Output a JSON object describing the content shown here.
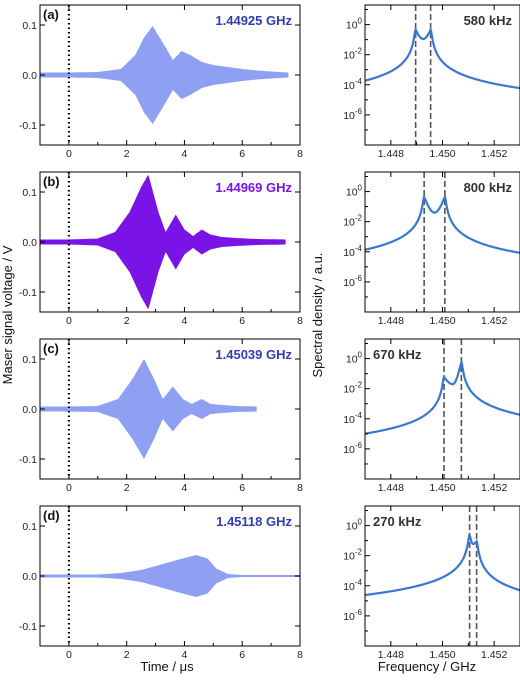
{
  "chart_data": [
    {
      "type": "line",
      "panel": "(a)",
      "annotation": "1.44925 GHz",
      "color": "#8f9ff2",
      "annotation_color": "#2f3fb0",
      "xlim": [
        -1,
        8
      ],
      "ylim": [
        -0.14,
        0.14
      ],
      "xticks": [
        0,
        2,
        4,
        6,
        8
      ],
      "xtick_labels": [
        "0",
        "2",
        "4",
        "6",
        "8"
      ],
      "yticks": [
        -0.1,
        0.0,
        0.1
      ],
      "ytick_labels": [
        "-0.1",
        "0.0",
        "0.1"
      ],
      "trigger_line_x": 0,
      "envelope": {
        "x": [
          -1.0,
          0.0,
          1.0,
          1.8,
          2.3,
          2.6,
          2.9,
          3.3,
          3.6,
          3.9,
          4.2,
          4.6,
          5.0,
          5.5,
          6.0,
          6.5,
          7.0,
          7.6
        ],
        "y": [
          0.005,
          0.005,
          0.006,
          0.012,
          0.04,
          0.075,
          0.098,
          0.06,
          0.03,
          0.048,
          0.04,
          0.026,
          0.02,
          0.016,
          0.012,
          0.009,
          0.007,
          0.005
        ]
      },
      "trace_end_x": 7.6
    },
    {
      "type": "line",
      "panel": "(b)",
      "annotation": "1.44969 GHz",
      "color": "#7a14e6",
      "annotation_color": "#7a14e6",
      "xlim": [
        -1,
        8
      ],
      "ylim": [
        -0.14,
        0.14
      ],
      "xticks": [
        0,
        2,
        4,
        6,
        8
      ],
      "xtick_labels": [
        "0",
        "2",
        "4",
        "6",
        "8"
      ],
      "yticks": [
        -0.1,
        0.0,
        0.1
      ],
      "ytick_labels": [
        "-0.1",
        "0.0",
        "0.1"
      ],
      "trigger_line_x": 0,
      "envelope": {
        "x": [
          -1.0,
          0.0,
          1.0,
          1.6,
          2.1,
          2.5,
          2.75,
          3.1,
          3.35,
          3.7,
          4.0,
          4.3,
          4.6,
          4.9,
          5.3,
          5.8,
          6.5,
          7.5
        ],
        "y": [
          0.005,
          0.005,
          0.007,
          0.02,
          0.06,
          0.11,
          0.135,
          0.06,
          0.02,
          0.055,
          0.025,
          0.012,
          0.025,
          0.015,
          0.01,
          0.008,
          0.006,
          0.005
        ]
      },
      "trace_end_x": 7.5
    },
    {
      "type": "line",
      "panel": "(c)",
      "annotation": "1.45039 GHz",
      "color": "#8f9ff2",
      "annotation_color": "#2f3fb0",
      "xlim": [
        -1,
        8
      ],
      "ylim": [
        -0.14,
        0.14
      ],
      "xticks": [
        0,
        2,
        4,
        6,
        8
      ],
      "xtick_labels": [
        "0",
        "2",
        "4",
        "6",
        "8"
      ],
      "yticks": [
        -0.1,
        0.0,
        0.1
      ],
      "ytick_labels": [
        "-0.1",
        "0.0",
        "0.1"
      ],
      "trigger_line_x": 0,
      "envelope": {
        "x": [
          -1.0,
          0.0,
          1.0,
          1.7,
          2.2,
          2.6,
          2.95,
          3.25,
          3.6,
          3.95,
          4.25,
          4.6,
          4.9,
          5.3,
          5.8,
          6.5
        ],
        "y": [
          0.005,
          0.005,
          0.006,
          0.02,
          0.06,
          0.1,
          0.06,
          0.02,
          0.045,
          0.02,
          0.01,
          0.02,
          0.01,
          0.008,
          0.006,
          0.005
        ]
      },
      "trace_end_x": 6.5
    },
    {
      "type": "line",
      "panel": "(d)",
      "annotation": "1.45118 GHz",
      "color": "#8f9ff2",
      "annotation_color": "#2f3fb0",
      "xlim": [
        -1,
        8
      ],
      "ylim": [
        -0.14,
        0.14
      ],
      "xticks": [
        0,
        2,
        4,
        6,
        8
      ],
      "xtick_labels": [
        "0",
        "2",
        "4",
        "6",
        "8"
      ],
      "yticks": [
        -0.1,
        0.0,
        0.1
      ],
      "ytick_labels": [
        "-0.1",
        "0.0",
        "0.1"
      ],
      "trigger_line_x": 0,
      "envelope": {
        "x": [
          -1.0,
          0.0,
          1.0,
          1.8,
          2.5,
          3.0,
          3.5,
          4.0,
          4.4,
          4.8,
          5.1,
          5.5,
          6.0,
          7.0,
          8.0
        ],
        "y": [
          0.003,
          0.003,
          0.003,
          0.006,
          0.012,
          0.02,
          0.028,
          0.036,
          0.042,
          0.035,
          0.015,
          0.004,
          0.002,
          0.002,
          0.002
        ]
      },
      "trace_end_x": 8.0
    },
    {
      "type": "line",
      "scale": "log",
      "annotation": "580 kHz",
      "color": "#3a78d0",
      "xlim": [
        1.447,
        1.453
      ],
      "ylim": [
        1e-08,
        20
      ],
      "xticks": [
        1.448,
        1.45,
        1.452
      ],
      "xtick_labels": [
        "1.448",
        "1.450",
        "1.452"
      ],
      "yticks": [
        1,
        0.01,
        0.0001,
        1e-06
      ],
      "ytick_labels": [
        "10^0",
        "10^-2",
        "10^-4",
        "10^-6"
      ],
      "peaks": [
        1.44896,
        1.44954
      ],
      "peak_height": 0.45,
      "dip_height": 0.11,
      "dashed_lines_x": [
        1.44896,
        1.44954
      ]
    },
    {
      "type": "line",
      "scale": "log",
      "annotation": "800 kHz",
      "color": "#3a78d0",
      "xlim": [
        1.447,
        1.453
      ],
      "ylim": [
        1e-08,
        20
      ],
      "xticks": [
        1.448,
        1.45,
        1.452
      ],
      "xtick_labels": [
        "1.448",
        "1.450",
        "1.452"
      ],
      "yticks": [
        1,
        0.01,
        0.0001,
        1e-06
      ],
      "ytick_labels": [
        "10^0",
        "10^-2",
        "10^-4",
        "10^-6"
      ],
      "peaks": [
        1.44929,
        1.45009
      ],
      "peak_height": 0.45,
      "dip_height": 0.04,
      "dashed_lines_x": [
        1.44929,
        1.45009
      ]
    },
    {
      "type": "line",
      "scale": "log",
      "annotation": "670 kHz",
      "color": "#3a78d0",
      "xlim": [
        1.447,
        1.453
      ],
      "ylim": [
        1e-08,
        20
      ],
      "xticks": [
        1.448,
        1.45,
        1.452
      ],
      "xtick_labels": [
        "1.448",
        "1.450",
        "1.452"
      ],
      "yticks": [
        1,
        0.01,
        0.0001,
        1e-06
      ],
      "ytick_labels": [
        "10^0",
        "10^-2",
        "10^-4",
        "10^-6"
      ],
      "peaks": [
        1.45006,
        1.45073
      ],
      "peak_heights": [
        0.06,
        0.6
      ],
      "dip_height": 0.02,
      "dashed_lines_x": [
        1.45006,
        1.45073
      ]
    },
    {
      "type": "line",
      "scale": "log",
      "annotation": "270 kHz",
      "color": "#3a78d0",
      "xlim": [
        1.447,
        1.453
      ],
      "ylim": [
        1e-08,
        20
      ],
      "xticks": [
        1.448,
        1.45,
        1.452
      ],
      "xtick_labels": [
        "1.448",
        "1.450",
        "1.452"
      ],
      "yticks": [
        1,
        0.01,
        0.0001,
        1e-06
      ],
      "ytick_labels": [
        "10^0",
        "10^-2",
        "10^-4",
        "10^-6"
      ],
      "peaks": [
        1.45105,
        1.45132
      ],
      "peak_heights": [
        0.25,
        0.09
      ],
      "dip_height": 0.06,
      "dashed_lines_x": [
        1.45105,
        1.45132
      ]
    }
  ],
  "axes": {
    "left_xlabel": "Time / μs",
    "left_ylabel": "Maser signal voltage / V",
    "right_xlabel": "Frequency / GHz",
    "right_ylabel": "Spectral density / a.u."
  }
}
